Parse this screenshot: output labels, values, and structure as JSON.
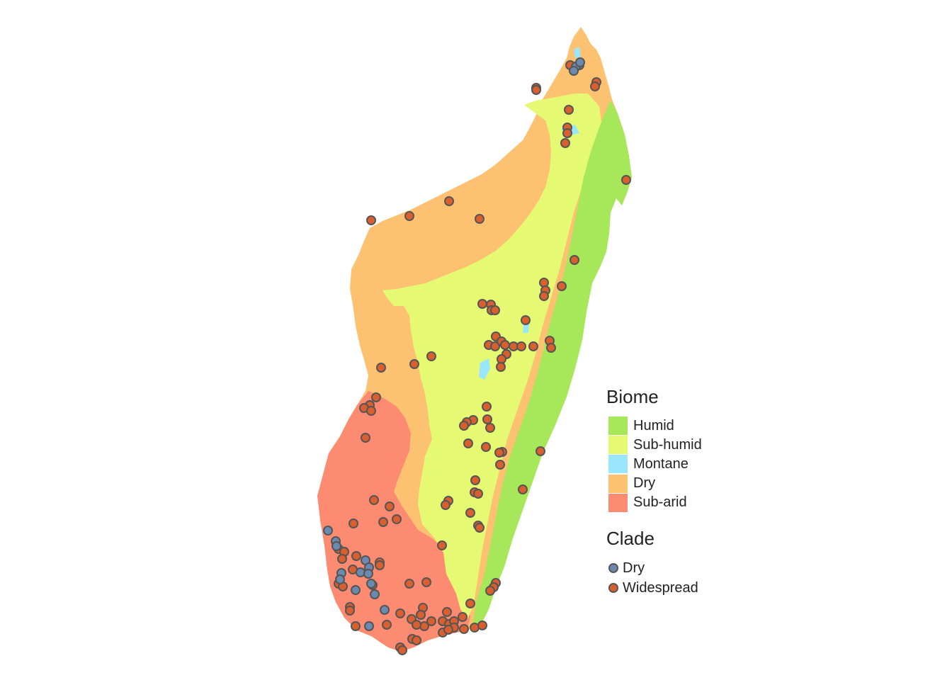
{
  "legend": {
    "biome_title": "Biome",
    "biomes": [
      {
        "label": "Humid",
        "color": "#a6e85a"
      },
      {
        "label": "Sub-humid",
        "color": "#e5fa72"
      },
      {
        "label": "Montane",
        "color": "#9ae6ff"
      },
      {
        "label": "Dry",
        "color": "#fcc272"
      },
      {
        "label": "Sub-arid",
        "color": "#fc8b72"
      }
    ],
    "clade_title": "Clade",
    "clades": [
      {
        "label": "Dry",
        "color": "#6a8ab0"
      },
      {
        "label": "Widespread",
        "color": "#d9602e"
      }
    ]
  }
}
